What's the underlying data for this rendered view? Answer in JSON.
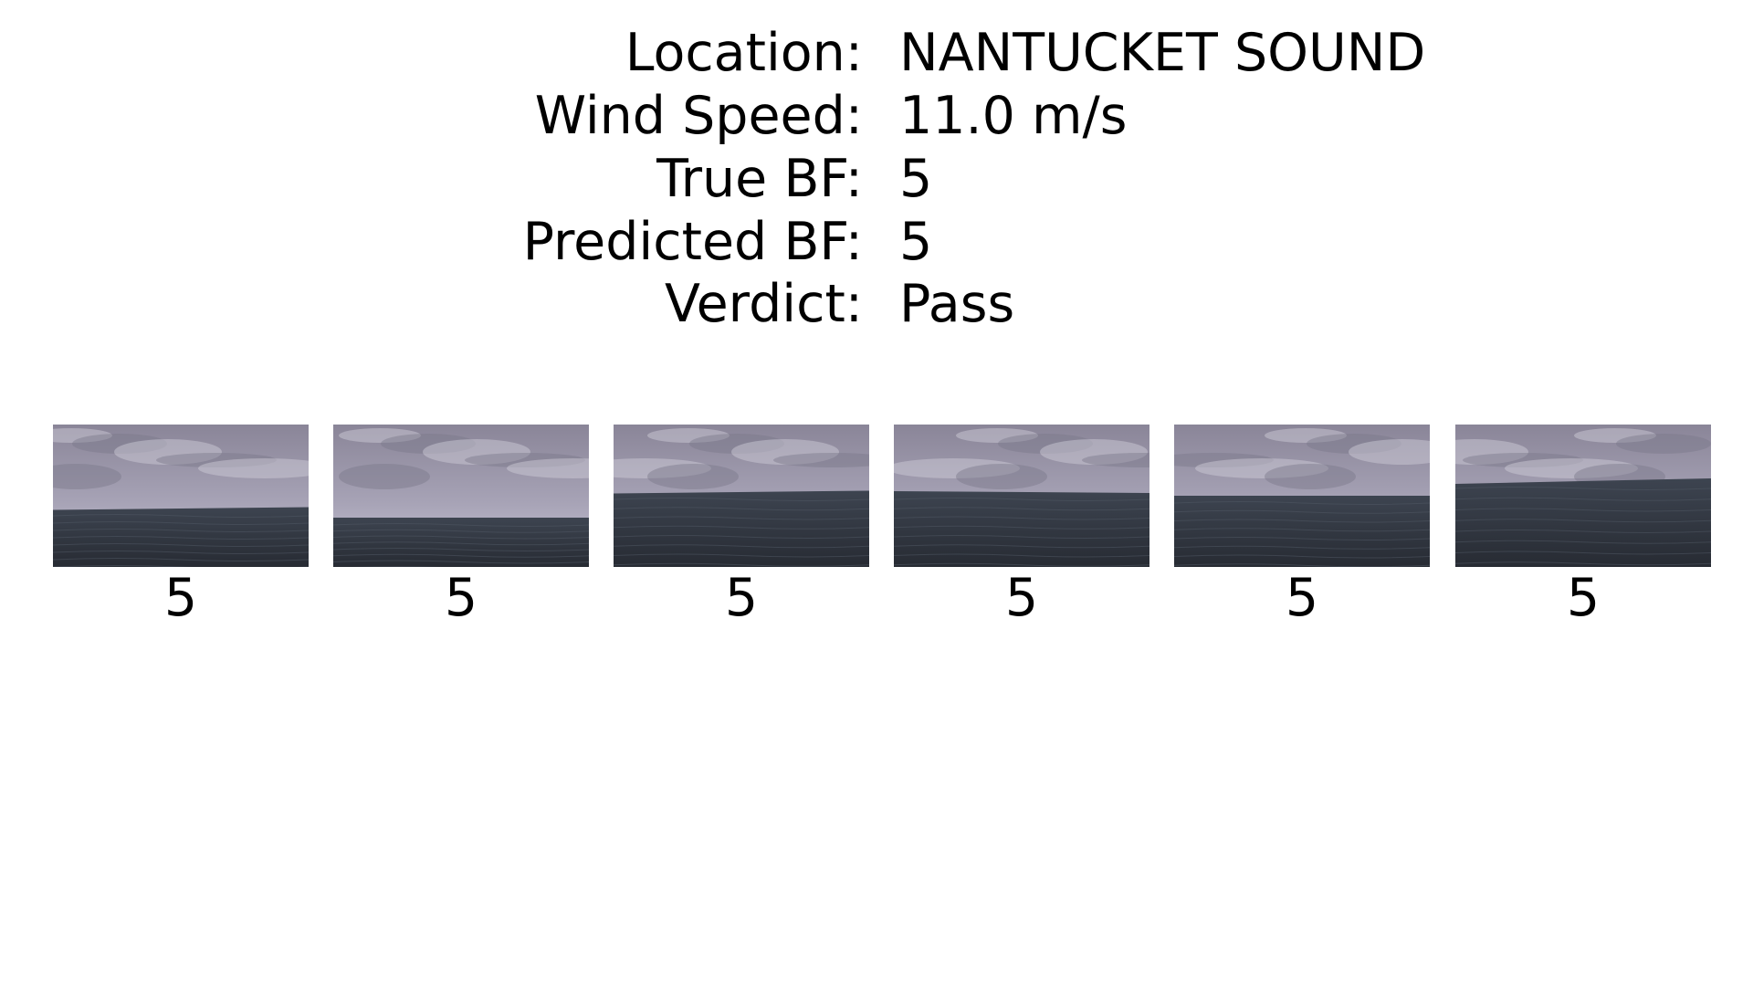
{
  "info": [
    {
      "label": "Location:",
      "value": "NANTUCKET SOUND"
    },
    {
      "label": "Wind Speed:",
      "value": "11.0 m/s"
    },
    {
      "label": "True BF:",
      "value": "5"
    },
    {
      "label": "Predicted BF:",
      "value": "5"
    },
    {
      "label": "Verdict:",
      "value": "Pass"
    }
  ],
  "frames": [
    {
      "label": "5"
    },
    {
      "label": "5"
    },
    {
      "label": "5"
    },
    {
      "label": "5"
    },
    {
      "label": "5"
    },
    {
      "label": "5"
    }
  ],
  "colors": {
    "sky_top": "#8a8598",
    "sky_mid": "#a7a3b6",
    "sky_light": "#c9c7d6",
    "sea_top": "#3d4450",
    "sea_bottom": "#272b33"
  }
}
